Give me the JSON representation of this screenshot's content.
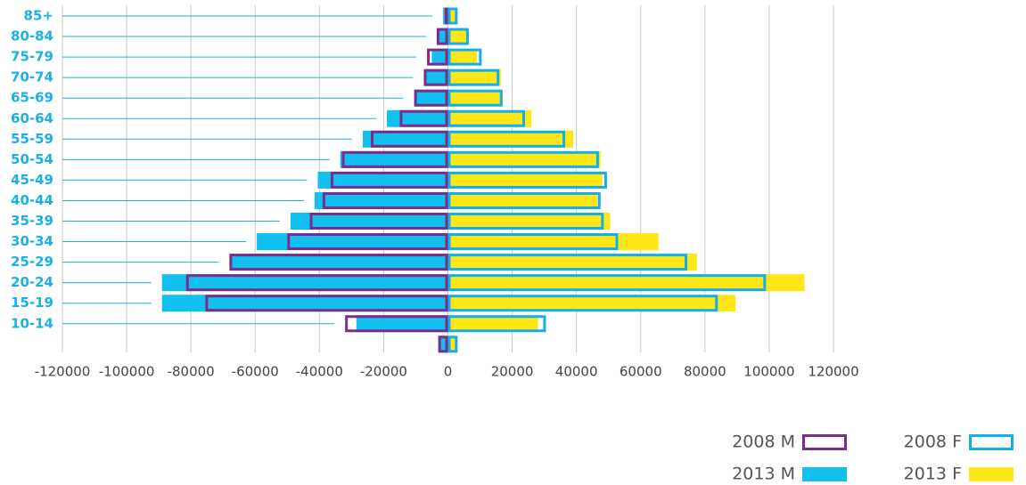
{
  "chart_data": {
    "type": "bar",
    "orientation": "horizontal",
    "categories": [
      "85+",
      "80-84",
      "75-79",
      "70-74",
      "65-69",
      "60-64",
      "55-59",
      "50-54",
      "45-49",
      "40-44",
      "35-39",
      "30-34",
      "25-29",
      "20-24",
      "15-19",
      "10-14",
      null
    ],
    "series": [
      {
        "name": "2008 M",
        "color": "#7b2d8e",
        "style": "outline",
        "values": [
          -1000,
          -3500,
          -6500,
          -7500,
          -10500,
          -15000,
          -24000,
          -33000,
          -36500,
          -39000,
          -43000,
          -50000,
          -68000,
          -81500,
          -75500,
          -32000,
          -3000
        ]
      },
      {
        "name": "2008 F",
        "color": "#12b0ea",
        "style": "outline",
        "values": [
          3000,
          6500,
          10500,
          16000,
          17000,
          24000,
          36500,
          47000,
          49500,
          47500,
          48500,
          53000,
          74500,
          99000,
          84000,
          30500,
          3000
        ]
      },
      {
        "name": "2013 M",
        "color": "#12c0f0",
        "style": "fill",
        "values": [
          -1500,
          -3000,
          -5000,
          -7000,
          -10500,
          -19000,
          -26500,
          -33500,
          -40500,
          -41500,
          -49000,
          -59500,
          -68000,
          -89000,
          -89000,
          -28500,
          -3000
        ]
      },
      {
        "name": "2013 F",
        "color": "#ffe617",
        "style": "fill",
        "values": [
          2500,
          6000,
          9000,
          16500,
          17000,
          26000,
          39000,
          47500,
          48000,
          46500,
          50500,
          65500,
          77500,
          111000,
          89500,
          28000,
          2500
        ]
      }
    ],
    "xlim": [
      -120000,
      120000
    ],
    "xticks": [
      -120000,
      -100000,
      -80000,
      -60000,
      -40000,
      -20000,
      0,
      20000,
      40000,
      60000,
      80000,
      100000,
      120000
    ],
    "grid": true,
    "legend": "bottom-right"
  }
}
